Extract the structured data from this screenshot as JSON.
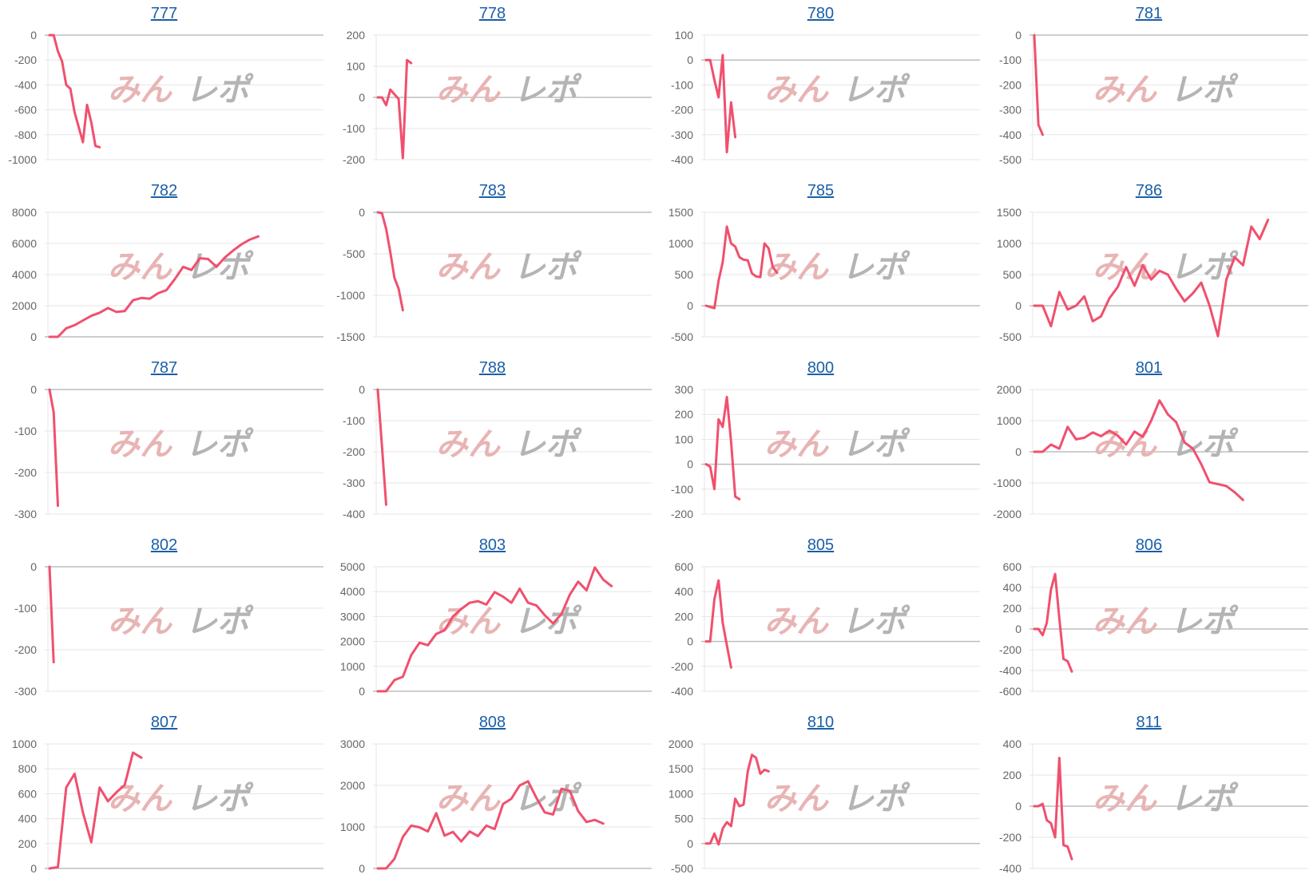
{
  "watermark": {
    "part1": "みん",
    "part2": "レポ",
    "color1": "#e8b4b4",
    "color2": "#b4b4b4"
  },
  "line_color": "#f0506e",
  "link_color": "#1a5fa8",
  "chart_data": [
    {
      "type": "line",
      "title": "777",
      "x_slots": 66,
      "x_step": 1,
      "ylim": [
        -1000,
        0
      ],
      "yticks": [
        0,
        -200,
        -400,
        -600,
        -800,
        -1000
      ],
      "values": [
        0,
        0,
        -130,
        -210,
        -400,
        -430,
        -620,
        -740,
        -860,
        -560,
        -700,
        -890,
        -900
      ]
    },
    {
      "type": "line",
      "title": "778",
      "x_slots": 66,
      "x_step": 1,
      "ylim": [
        -200,
        200
      ],
      "yticks": [
        200,
        100,
        0,
        -100,
        -200
      ],
      "values": [
        0,
        0,
        -25,
        25,
        10,
        -5,
        -195,
        120,
        110
      ]
    },
    {
      "type": "line",
      "title": "780",
      "x_slots": 66,
      "x_step": 1,
      "ylim": [
        -400,
        100
      ],
      "yticks": [
        100,
        0,
        -100,
        -200,
        -300,
        -400
      ],
      "values": [
        0,
        0,
        -80,
        -150,
        20,
        -370,
        -170,
        -310
      ]
    },
    {
      "type": "line",
      "title": "781",
      "x_slots": 66,
      "x_step": 1,
      "ylim": [
        -500,
        0
      ],
      "yticks": [
        0,
        -100,
        -200,
        -300,
        -400,
        -500
      ],
      "values": [
        0,
        -360,
        -400
      ]
    },
    {
      "type": "line",
      "title": "782",
      "x_slots": 66,
      "x_step": 2,
      "ylim": [
        0,
        8000
      ],
      "yticks": [
        8000,
        6000,
        4000,
        2000,
        0
      ],
      "values": [
        0,
        0,
        550,
        750,
        1050,
        1350,
        1550,
        1850,
        1600,
        1650,
        2350,
        2500,
        2450,
        2800,
        3000,
        3700,
        4500,
        4300,
        5050,
        5000,
        4500,
        5100,
        5550,
        5950,
        6250,
        6450
      ]
    },
    {
      "type": "line",
      "title": "783",
      "x_slots": 66,
      "x_step": 1,
      "ylim": [
        -1500,
        0
      ],
      "yticks": [
        0,
        -500,
        -1000,
        -1500
      ],
      "values": [
        0,
        -10,
        -200,
        -480,
        -790,
        -920,
        -1180
      ]
    },
    {
      "type": "line",
      "title": "785",
      "x_slots": 66,
      "x_step": 1,
      "ylim": [
        -500,
        1500
      ],
      "yticks": [
        1500,
        1000,
        500,
        0,
        -500
      ],
      "values": [
        0,
        -20,
        -40,
        400,
        700,
        1270,
        1000,
        950,
        780,
        740,
        730,
        520,
        470,
        460,
        1000,
        920,
        620,
        530
      ]
    },
    {
      "type": "line",
      "title": "786",
      "x_slots": 66,
      "x_step": 2,
      "ylim": [
        -500,
        1500
      ],
      "yticks": [
        1500,
        1000,
        500,
        0,
        -500
      ],
      "values": [
        0,
        0,
        -330,
        220,
        -60,
        0,
        150,
        -250,
        -170,
        120,
        300,
        620,
        320,
        650,
        420,
        560,
        500,
        270,
        70,
        200,
        370,
        0,
        -490,
        420,
        780,
        650,
        1270,
        1070,
        1380
      ]
    },
    {
      "type": "line",
      "title": "787",
      "x_slots": 66,
      "x_step": 1,
      "ylim": [
        -300,
        0
      ],
      "yticks": [
        0,
        -100,
        -200,
        -300
      ],
      "values": [
        0,
        -55,
        -280
      ]
    },
    {
      "type": "line",
      "title": "788",
      "x_slots": 66,
      "x_step": 1,
      "ylim": [
        -400,
        0
      ],
      "yticks": [
        0,
        -100,
        -200,
        -300,
        -400
      ],
      "values": [
        0,
        -180,
        -370
      ]
    },
    {
      "type": "line",
      "title": "800",
      "x_slots": 66,
      "x_step": 1,
      "ylim": [
        -200,
        300
      ],
      "yticks": [
        300,
        200,
        100,
        0,
        -100,
        -200
      ],
      "values": [
        0,
        -10,
        -100,
        180,
        150,
        270,
        90,
        -130,
        -140
      ]
    },
    {
      "type": "line",
      "title": "801",
      "x_slots": 66,
      "x_step": 2,
      "ylim": [
        -2000,
        2000
      ],
      "yticks": [
        2000,
        1000,
        0,
        -1000,
        -2000
      ],
      "values": [
        0,
        0,
        230,
        100,
        800,
        400,
        450,
        620,
        500,
        680,
        520,
        230,
        650,
        480,
        1000,
        1650,
        1200,
        950,
        300,
        100,
        -400,
        -980,
        -1040,
        -1100,
        -1300,
        -1550
      ]
    },
    {
      "type": "line",
      "title": "802",
      "x_slots": 66,
      "x_step": 1,
      "ylim": [
        -300,
        0
      ],
      "yticks": [
        0,
        -100,
        -200,
        -300
      ],
      "values": [
        0,
        -230
      ]
    },
    {
      "type": "line",
      "title": "803",
      "x_slots": 66,
      "x_step": 2,
      "ylim": [
        0,
        5000
      ],
      "yticks": [
        5000,
        4000,
        3000,
        2000,
        1000,
        0
      ],
      "values": [
        0,
        0,
        450,
        580,
        1450,
        1950,
        1850,
        2300,
        2450,
        3000,
        3300,
        3550,
        3620,
        3480,
        3980,
        3800,
        3550,
        4120,
        3550,
        3450,
        3050,
        2720,
        3100,
        3880,
        4400,
        4050,
        4970,
        4480,
        4220
      ]
    },
    {
      "type": "line",
      "title": "805",
      "x_slots": 66,
      "x_step": 1,
      "ylim": [
        -400,
        600
      ],
      "yticks": [
        600,
        400,
        200,
        0,
        -200,
        -400
      ],
      "values": [
        0,
        0,
        340,
        490,
        150,
        -30,
        -210
      ]
    },
    {
      "type": "line",
      "title": "806",
      "x_slots": 66,
      "x_step": 1,
      "ylim": [
        -600,
        600
      ],
      "yticks": [
        600,
        400,
        200,
        0,
        -200,
        -400,
        -600
      ],
      "values": [
        0,
        0,
        -60,
        60,
        380,
        530,
        100,
        -290,
        -310,
        -410
      ]
    },
    {
      "type": "line",
      "title": "807",
      "x_slots": 66,
      "x_step": 2,
      "ylim": [
        0,
        1000
      ],
      "yticks": [
        1000,
        800,
        600,
        400,
        200,
        0
      ],
      "values": [
        0,
        10,
        650,
        760,
        450,
        210,
        650,
        540,
        610,
        670,
        930,
        890
      ]
    },
    {
      "type": "line",
      "title": "808",
      "x_slots": 66,
      "x_step": 2,
      "ylim": [
        0,
        3000
      ],
      "yticks": [
        3000,
        2000,
        1000,
        0
      ],
      "values": [
        0,
        0,
        230,
        760,
        1030,
        990,
        890,
        1330,
        790,
        880,
        650,
        890,
        780,
        1030,
        950,
        1550,
        1680,
        2000,
        2100,
        1700,
        1350,
        1300,
        1920,
        1870,
        1380,
        1120,
        1170,
        1080
      ]
    },
    {
      "type": "line",
      "title": "810",
      "x_slots": 66,
      "x_step": 1,
      "ylim": [
        -500,
        2000
      ],
      "yticks": [
        2000,
        1500,
        1000,
        500,
        0,
        -500
      ],
      "values": [
        0,
        0,
        200,
        -20,
        300,
        430,
        350,
        900,
        750,
        780,
        1450,
        1780,
        1720,
        1400,
        1480,
        1450
      ]
    },
    {
      "type": "line",
      "title": "811",
      "x_slots": 66,
      "x_step": 1,
      "ylim": [
        -400,
        400
      ],
      "yticks": [
        400,
        200,
        0,
        -200,
        -400
      ],
      "values": [
        0,
        0,
        15,
        -90,
        -110,
        -200,
        310,
        -250,
        -260,
        -340
      ]
    }
  ]
}
